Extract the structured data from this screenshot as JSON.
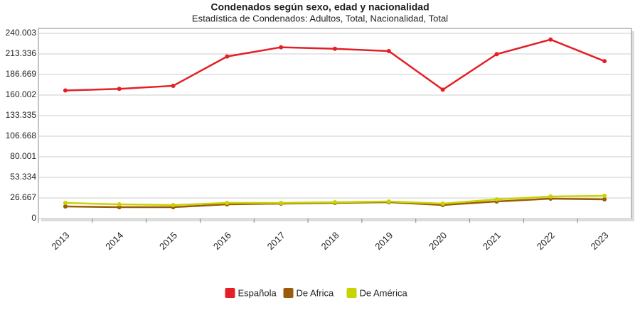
{
  "chart_data": {
    "type": "line",
    "title": "Condenados según sexo, edad y nacionalidad",
    "subtitle": "Estadística de Condenados: Adultos, Total, Nacionalidad, Total",
    "categories": [
      "2013",
      "2014",
      "2015",
      "2016",
      "2017",
      "2018",
      "2019",
      "2020",
      "2021",
      "2022",
      "2023"
    ],
    "series": [
      {
        "name": "Española",
        "color": "#e41f26",
        "values": [
          166000,
          168000,
          172000,
          210000,
          222000,
          220000,
          217000,
          167000,
          213000,
          232000,
          204000
        ]
      },
      {
        "name": "De Africa",
        "color": "#9c5a0b",
        "values": [
          15600,
          14700,
          14700,
          18400,
          19300,
          20200,
          21100,
          17500,
          22100,
          25700,
          24800
        ]
      },
      {
        "name": "De América",
        "color": "#c8d400",
        "values": [
          20200,
          18400,
          17500,
          20200,
          20200,
          21100,
          22100,
          19300,
          24800,
          28500,
          29400
        ]
      }
    ],
    "ylim": [
      0,
      240003
    ],
    "yticks": [
      0,
      {
        "value": 26667,
        "label": "26.667"
      },
      {
        "value": 53334,
        "label": "53.334"
      },
      {
        "value": 80001,
        "label": "80.001"
      },
      {
        "value": 106668,
        "label": "106.668"
      },
      {
        "value": 133335,
        "label": "133.335"
      },
      {
        "value": 160002,
        "label": "160.002"
      },
      {
        "value": 186669,
        "label": "186.669"
      },
      {
        "value": 213336,
        "label": "213.336"
      },
      {
        "value": 240003,
        "label": "240.003"
      }
    ],
    "grid": true,
    "legend": "bottom"
  }
}
